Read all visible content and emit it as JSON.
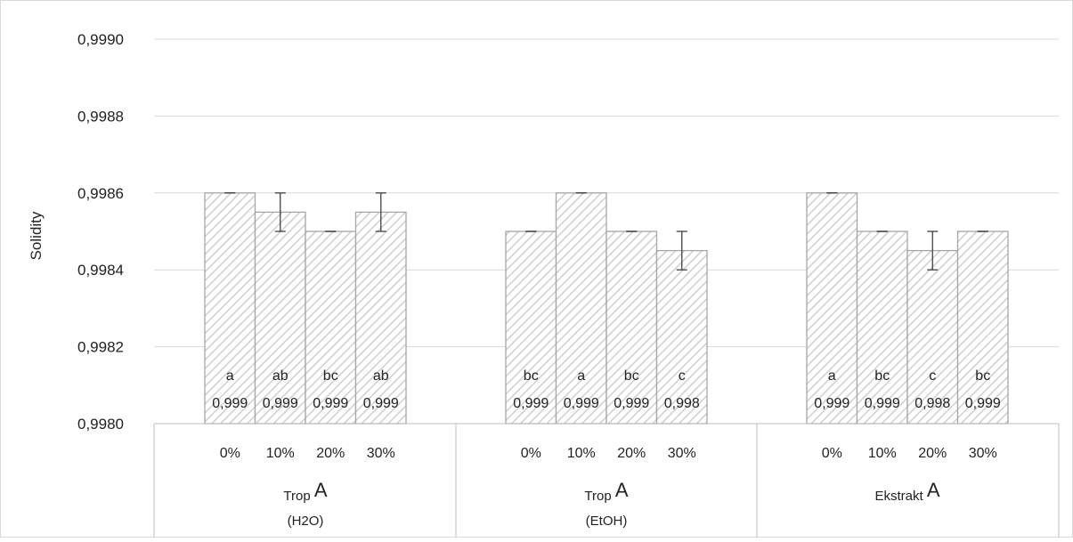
{
  "chart_data": {
    "type": "bar",
    "ylabel": "Solidity",
    "ylim": [
      0.998,
      0.999
    ],
    "yticks": [
      "0,9980",
      "0,9982",
      "0,9984",
      "0,9986",
      "0,9988",
      "0,9990"
    ],
    "ytick_values": [
      0.998,
      0.9982,
      0.9984,
      0.9986,
      0.9988,
      0.999
    ],
    "grid": true,
    "bar_fill": "#d9d9d9",
    "bar_stroke": "#a6a6a6",
    "groups": [
      {
        "title": "Trop",
        "letter": "A",
        "subtitle": "(H2O)",
        "bars": [
          {
            "category": "0%",
            "value": 0.9986,
            "error": 0.0,
            "letter": "a",
            "label": "0,999"
          },
          {
            "category": "10%",
            "value": 0.99855,
            "error": 5e-05,
            "letter": "ab",
            "label": "0,999"
          },
          {
            "category": "20%",
            "value": 0.9985,
            "error": 0.0,
            "letter": "bc",
            "label": "0,999"
          },
          {
            "category": "30%",
            "value": 0.99855,
            "error": 5e-05,
            "letter": "ab",
            "label": "0,999"
          }
        ]
      },
      {
        "title": "Trop",
        "letter": "A",
        "subtitle": "(EtOH)",
        "bars": [
          {
            "category": "0%",
            "value": 0.9985,
            "error": 0.0,
            "letter": "bc",
            "label": "0,999"
          },
          {
            "category": "10%",
            "value": 0.9986,
            "error": 0.0,
            "letter": "a",
            "label": "0,999"
          },
          {
            "category": "20%",
            "value": 0.9985,
            "error": 0.0,
            "letter": "bc",
            "label": "0,999"
          },
          {
            "category": "30%",
            "value": 0.99845,
            "error": 5e-05,
            "letter": "c",
            "label": "0,998"
          }
        ]
      },
      {
        "title": "Ekstrakt",
        "letter": "A",
        "subtitle": "",
        "bars": [
          {
            "category": "0%",
            "value": 0.9986,
            "error": 0.0,
            "letter": "a",
            "label": "0,999"
          },
          {
            "category": "10%",
            "value": 0.9985,
            "error": 0.0,
            "letter": "bc",
            "label": "0,999"
          },
          {
            "category": "20%",
            "value": 0.99845,
            "error": 5e-05,
            "letter": "c",
            "label": "0,998"
          },
          {
            "category": "30%",
            "value": 0.9985,
            "error": 0.0,
            "letter": "bc",
            "label": "0,999"
          }
        ]
      }
    ]
  }
}
